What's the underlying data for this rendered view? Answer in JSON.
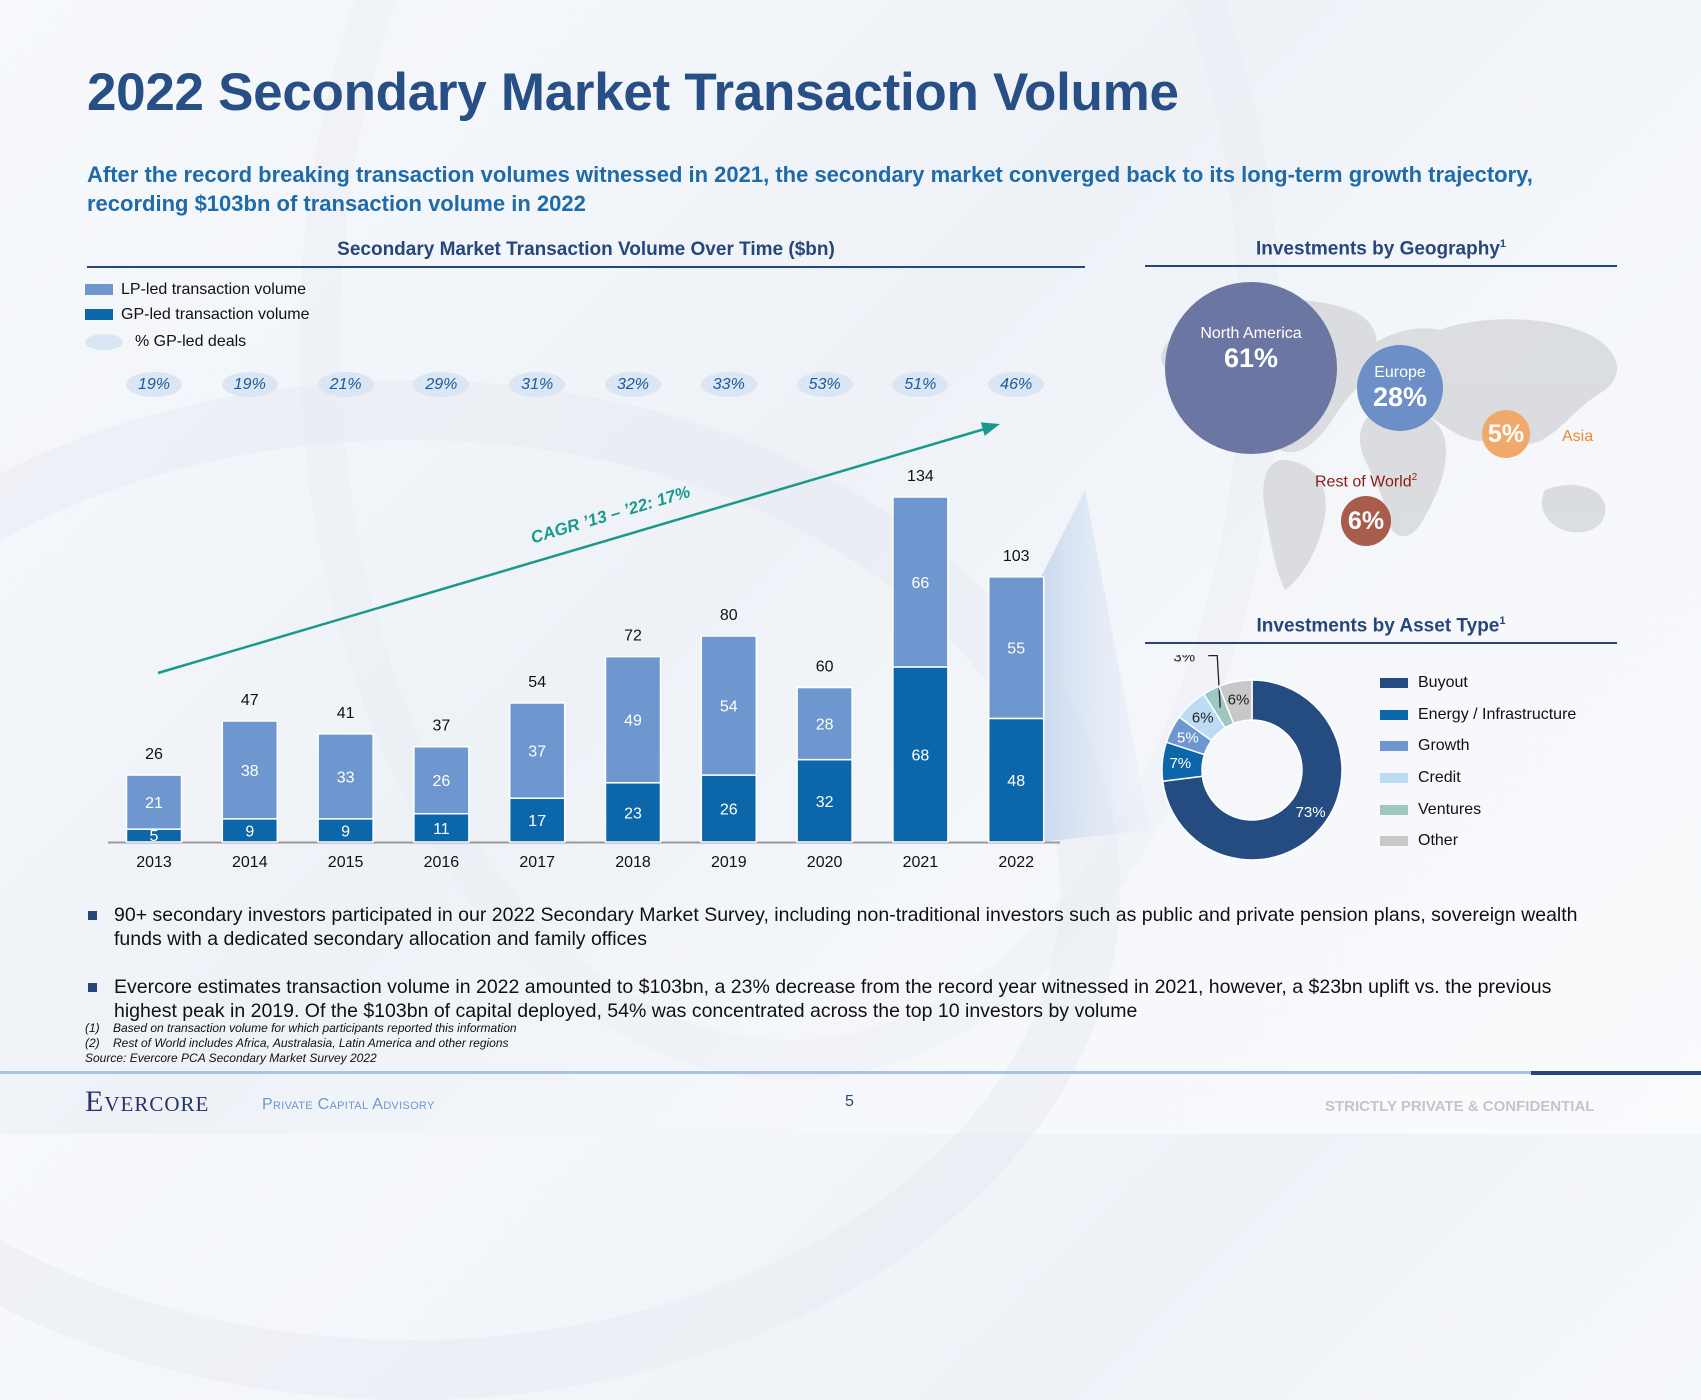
{
  "title": "2022 Secondary Market Transaction Volume",
  "subtitle": "After the record breaking transaction volumes witnessed in 2021, the secondary market converged back to its long-term growth trajectory, recording $103bn of transaction volume in 2022",
  "colors": {
    "title": "#274f85",
    "subtitle": "#1f6aa8",
    "lp_led": "#6e97cf",
    "gp_led": "#0c66aa",
    "pill": "#dae6f3",
    "cagr": "#1a9a8c",
    "footer_light": "#a7c3e6",
    "footer_dark": "#27467a"
  },
  "chart_data": [
    {
      "type": "bar",
      "stacked": true,
      "title": "Secondary Market Transaction Volume Over Time ($bn)",
      "xlabel": "",
      "ylabel": "",
      "categories": [
        "2013",
        "2014",
        "2015",
        "2016",
        "2017",
        "2018",
        "2019",
        "2020",
        "2021",
        "2022"
      ],
      "series": [
        {
          "name": "GP-led transaction volume",
          "values": [
            5,
            9,
            9,
            11,
            17,
            23,
            26,
            32,
            68,
            48
          ]
        },
        {
          "name": "LP-led transaction volume",
          "values": [
            21,
            38,
            33,
            26,
            37,
            49,
            54,
            28,
            66,
            55
          ]
        }
      ],
      "totals": [
        26,
        47,
        41,
        37,
        54,
        72,
        80,
        60,
        134,
        103
      ],
      "gp_led_deal_pct": {
        "label": "% GP-led deals",
        "values": [
          "19%",
          "19%",
          "21%",
          "29%",
          "31%",
          "32%",
          "33%",
          "53%",
          "51%",
          "46%"
        ]
      },
      "annotation": "CAGR ’13 – ’22: 17%",
      "legend": {
        "position": "top-left",
        "items": [
          "LP-led transaction volume",
          "GP-led transaction volume",
          "% GP-led deals"
        ]
      },
      "ylim": [
        0,
        140
      ],
      "grid": false
    },
    {
      "type": "bubble",
      "title": "Investments by Geography",
      "title_sup": "1",
      "regions": [
        {
          "name": "North America",
          "value": 61,
          "label": "61%",
          "color": "#6b76a3"
        },
        {
          "name": "Europe",
          "value": 28,
          "label": "28%",
          "color": "#6b8fc6"
        },
        {
          "name": "Asia",
          "value": 5,
          "label": "5%",
          "color": "#f0a96a",
          "text_color": "#e98b2f"
        },
        {
          "name": "Rest of World",
          "name_sup": "2",
          "value": 6,
          "label": "6%",
          "color": "#a85c4c",
          "text_color": "#8b1c14"
        }
      ]
    },
    {
      "type": "pie",
      "donut": true,
      "title": "Investments by Asset Type",
      "title_sup": "1",
      "slices": [
        {
          "name": "Buyout",
          "value": 73,
          "label": "73%",
          "color": "#244c80"
        },
        {
          "name": "Energy / Infrastructure",
          "value": 7,
          "label": "7%",
          "color": "#0c66aa"
        },
        {
          "name": "Growth",
          "value": 5,
          "label": "5%",
          "color": "#6e97cf"
        },
        {
          "name": "Credit",
          "value": 6,
          "label": "6%",
          "color": "#bcdcf3"
        },
        {
          "name": "Ventures",
          "value": 3,
          "label": "3%",
          "color": "#9fc7c2"
        },
        {
          "name": "Other",
          "value": 6,
          "label": "6%",
          "color": "#c8c8c8"
        }
      ],
      "legend": {
        "position": "right"
      }
    }
  ],
  "bullets": [
    "90+ secondary investors participated in our 2022 Secondary Market Survey, including non-traditional investors such as public and private pension plans, sovereign wealth funds with a dedicated secondary allocation and family offices",
    "Evercore estimates transaction volume in 2022 amounted to $103bn, a 23% decrease from the record year witnessed in 2021, however, a $23bn uplift vs. the previous highest peak in 2019. Of the $103bn of capital deployed, 54% was concentrated across the top 10 investors by volume"
  ],
  "footnotes": [
    {
      "num": "(1)",
      "text": "Based on transaction volume for which participants reported this information"
    },
    {
      "num": "(2)",
      "text": "Rest of World includes Africa, Australasia, Latin America and other regions"
    }
  ],
  "source": "Source: Evercore PCA Secondary Market Survey 2022",
  "footer": {
    "brand": "Evercore",
    "division": "Private Capital Advisory",
    "page_number": "5",
    "confidentiality": "STRICTLY PRIVATE & CONFIDENTIAL"
  }
}
